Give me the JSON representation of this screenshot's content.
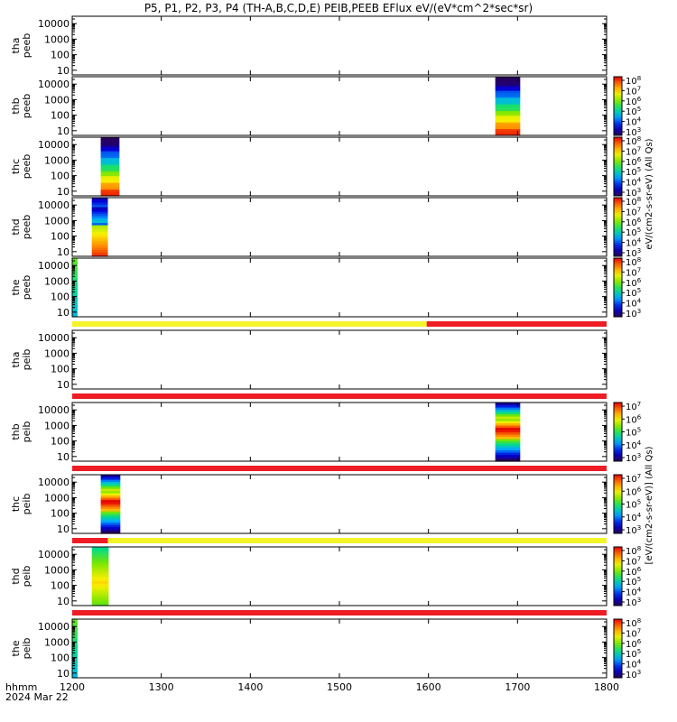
{
  "title": "P5, P1, P2, P3, P4 (TH-A,B,C,D,E) PEIB,PEEB EFlux eV/(eV*cm^2*sec*sr)",
  "footer": {
    "time_label": "hhmm",
    "date_label": "2024 Mar 22"
  },
  "colorbar_labels": {
    "upper": "eV/(cm2-s-sr-eV) (All Qs)",
    "lower": "[eV/(cm2-s-sr-eV)] (All Qs)"
  },
  "colors": {
    "quality_yellow": "#f4f42a",
    "quality_red": "#ee1c24"
  },
  "chart_data": {
    "type": "heatmap",
    "xlabel": "",
    "xlim": [
      1200,
      1800
    ],
    "x_ticks": [
      "1200",
      "1300",
      "1400",
      "1500",
      "1600",
      "1700",
      "1800"
    ],
    "ylim": [
      5,
      30000
    ],
    "y_scale": "log",
    "y_ticks": [
      "10",
      "100",
      "1000",
      "10000"
    ],
    "panels": [
      {
        "label1": "tha",
        "label2": "peeb",
        "bursts": [],
        "colorbar": false
      },
      {
        "label1": "thb",
        "label2": "peeb",
        "bursts": [
          {
            "x0": 1675,
            "x1": 1703,
            "mode": "electron"
          }
        ],
        "colorbar": true,
        "cbar_ticks": [
          "10^3",
          "10^4",
          "10^5",
          "10^6",
          "10^7",
          "10^8"
        ]
      },
      {
        "label1": "thc",
        "label2": "peeb",
        "bursts": [
          {
            "x0": 1232,
            "x1": 1253,
            "mode": "electron"
          }
        ],
        "colorbar": true,
        "cbar_ticks": [
          "10^3",
          "10^4",
          "10^5",
          "10^6",
          "10^7",
          "10^8"
        ]
      },
      {
        "label1": "thd",
        "label2": "peeb",
        "bursts": [
          {
            "x0": 1222,
            "x1": 1240,
            "mode": "electron_d"
          }
        ],
        "colorbar": true,
        "cbar_ticks": [
          "10^3",
          "10^4",
          "10^5",
          "10^6",
          "10^7",
          "10^8"
        ]
      },
      {
        "label1": "the",
        "label2": "peeb",
        "bursts": [
          {
            "x0": 1200,
            "x1": 1206,
            "mode": "edge"
          }
        ],
        "colorbar": true,
        "cbar_ticks": [
          "10^3",
          "10^4",
          "10^5",
          "10^6",
          "10^7",
          "10^8"
        ]
      },
      {
        "label1": "tha",
        "label2": "peib",
        "bursts": [],
        "colorbar": false
      },
      {
        "label1": "thb",
        "label2": "peib",
        "bursts": [
          {
            "x0": 1675,
            "x1": 1703,
            "mode": "ion"
          }
        ],
        "colorbar": true,
        "cbar_ticks": [
          "10^3",
          "10^4",
          "10^5",
          "10^6",
          "10^7"
        ]
      },
      {
        "label1": "thc",
        "label2": "peib",
        "bursts": [
          {
            "x0": 1232,
            "x1": 1254,
            "mode": "ion"
          }
        ],
        "colorbar": true,
        "cbar_ticks": [
          "10^3",
          "10^4",
          "10^5",
          "10^6",
          "10^7"
        ]
      },
      {
        "label1": "thd",
        "label2": "peib",
        "bursts": [
          {
            "x0": 1222,
            "x1": 1241,
            "mode": "ion_d"
          }
        ],
        "colorbar": true,
        "cbar_ticks": [
          "10^3",
          "10^4",
          "10^5",
          "10^6",
          "10^7",
          "10^8"
        ]
      },
      {
        "label1": "the",
        "label2": "peib",
        "bursts": [
          {
            "x0": 1200,
            "x1": 1206,
            "mode": "edge"
          }
        ],
        "colorbar": true,
        "cbar_ticks": [
          "10^3",
          "10^4",
          "10^5",
          "10^6",
          "10^7",
          "10^8"
        ]
      }
    ],
    "quality_bars": [
      {
        "segments": [
          {
            "x0": 1200,
            "x1": 1598,
            "flag": "yellow"
          },
          {
            "x0": 1598,
            "x1": 1800,
            "flag": "red"
          }
        ]
      },
      {
        "segments": [
          {
            "x0": 1200,
            "x1": 1800,
            "flag": "red"
          }
        ]
      },
      {
        "segments": [
          {
            "x0": 1200,
            "x1": 1800,
            "flag": "red"
          }
        ]
      },
      {
        "segments": [
          {
            "x0": 1200,
            "x1": 1240,
            "flag": "red"
          },
          {
            "x0": 1240,
            "x1": 1800,
            "flag": "yellow"
          }
        ]
      },
      {
        "segments": [
          {
            "x0": 1200,
            "x1": 1800,
            "flag": "red"
          }
        ]
      }
    ]
  }
}
